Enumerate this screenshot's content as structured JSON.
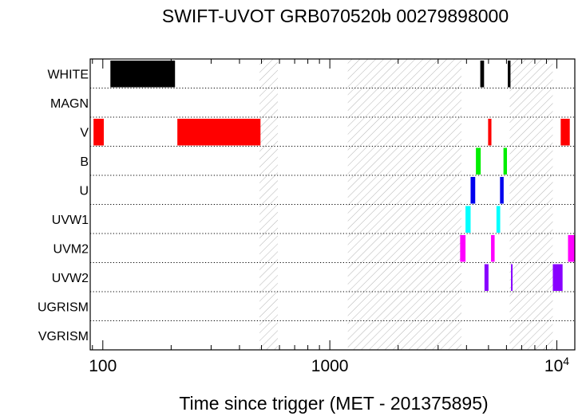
{
  "chart_data": {
    "type": "timeline",
    "title": "SWIFT-UVOT GRB070520b 00279898000",
    "xlabel": "Time since trigger (MET - 201375895)",
    "x_scale": "log",
    "xlim": [
      88,
      12000
    ],
    "x_ticks": [
      {
        "value": 100,
        "label": "100"
      },
      {
        "value": 1000,
        "label": "1000"
      },
      {
        "value": 10000,
        "label": "10",
        "sup": "4"
      }
    ],
    "rows": [
      "WHITE",
      "MAGN",
      "V",
      "B",
      "U",
      "UVW1",
      "UVM2",
      "UVW2",
      "UGRISM",
      "VGRISM"
    ],
    "gap_intervals": [
      [
        490,
        590
      ],
      [
        1200,
        3800
      ],
      [
        6200,
        9600
      ]
    ],
    "colors": {
      "WHITE": "#000000",
      "V": "#ff0000",
      "B": "#00ee00",
      "U": "#0000ee",
      "UVW1": "#00ffff",
      "UVM2": "#ff00ff",
      "UVW2": "#8800ff",
      "hatch": "#b0b0b0"
    },
    "exposures": [
      {
        "row": "WHITE",
        "start": 108,
        "end": 208
      },
      {
        "row": "WHITE",
        "start": 4600,
        "end": 4780
      },
      {
        "row": "WHITE",
        "start": 6080,
        "end": 6250
      },
      {
        "row": "V",
        "start": 91,
        "end": 101
      },
      {
        "row": "V",
        "start": 213,
        "end": 495
      },
      {
        "row": "V",
        "start": 4980,
        "end": 5150
      },
      {
        "row": "V",
        "start": 10400,
        "end": 11400
      },
      {
        "row": "B",
        "start": 4400,
        "end": 4620
      },
      {
        "row": "B",
        "start": 5820,
        "end": 6030
      },
      {
        "row": "U",
        "start": 4170,
        "end": 4370
      },
      {
        "row": "U",
        "start": 5620,
        "end": 5830
      },
      {
        "row": "UVW1",
        "start": 3960,
        "end": 4170
      },
      {
        "row": "UVW1",
        "start": 5420,
        "end": 5630
      },
      {
        "row": "UVM2",
        "start": 3750,
        "end": 3960
      },
      {
        "row": "UVM2",
        "start": 5130,
        "end": 5320
      },
      {
        "row": "UVM2",
        "start": 11200,
        "end": 12000
      },
      {
        "row": "UVW2",
        "start": 4800,
        "end": 5000
      },
      {
        "row": "UVW2",
        "start": 6280,
        "end": 6360
      },
      {
        "row": "UVW2",
        "start": 9600,
        "end": 10600
      }
    ]
  }
}
